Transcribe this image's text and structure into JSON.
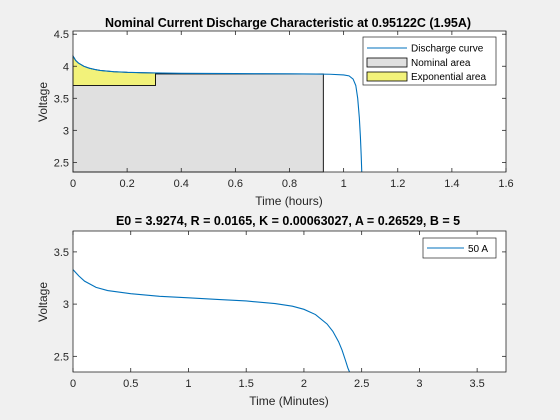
{
  "colors": {
    "figure_bg": "#f0f0f0",
    "axes_bg": "#ffffff",
    "curve": "#0072bd",
    "nominal_fill": "#e0e0e0",
    "exponential_fill": "#f2f27a",
    "grid": "#e8e8e8"
  },
  "chart_data": [
    {
      "type": "line",
      "title": "Nominal Current Discharge Characteristic at 0.95122C (1.95A)",
      "xlabel": "Time (hours)",
      "ylabel": "Voltage",
      "xlim": [
        0,
        1.6
      ],
      "ylim": [
        2.35,
        4.55
      ],
      "xticks": [
        0,
        0.2,
        0.4,
        0.6,
        0.8,
        1,
        1.2,
        1.4,
        1.6
      ],
      "xtick_labels": [
        "0",
        "0.2",
        "0.4",
        "0.6",
        "0.8",
        "1",
        "1.2",
        "1.4",
        "1.6"
      ],
      "yticks": [
        2.5,
        3,
        3.5,
        4,
        4.5
      ],
      "ytick_labels": [
        "2.5",
        "3",
        "3.5",
        "4",
        "4.5"
      ],
      "grid": false,
      "legend_position": "top-right",
      "legend": [
        "Discharge curve",
        "Nominal area",
        "Exponential area"
      ],
      "series": [
        {
          "name": "Discharge curve",
          "x": [
            0,
            0.01,
            0.02,
            0.04,
            0.06,
            0.08,
            0.1,
            0.15,
            0.2,
            0.25,
            0.3,
            0.4,
            0.5,
            0.6,
            0.7,
            0.8,
            0.9,
            0.95,
            1.0,
            1.02,
            1.035,
            1.045,
            1.052,
            1.058,
            1.062,
            1.065,
            1.067
          ],
          "y": [
            4.16,
            4.09,
            4.05,
            4.0,
            3.97,
            3.95,
            3.935,
            3.915,
            3.905,
            3.9,
            3.895,
            3.89,
            3.888,
            3.886,
            3.884,
            3.882,
            3.878,
            3.875,
            3.865,
            3.85,
            3.8,
            3.7,
            3.5,
            3.2,
            2.9,
            2.6,
            2.35
          ]
        }
      ],
      "areas": [
        {
          "name": "Nominal area",
          "x_start": 0,
          "x_end": 0.925,
          "y_top": 3.88
        },
        {
          "name": "Exponential area",
          "x_start": 0,
          "x_end": 0.305,
          "y_bottom": 3.7
        }
      ]
    },
    {
      "type": "line",
      "title": "E0 = 3.9274, R = 0.0165, K = 0.00063027, A = 0.26529, B = 5",
      "xlabel": "Time (Minutes)",
      "ylabel": "Voltage",
      "xlim": [
        0,
        3.75
      ],
      "ylim": [
        2.35,
        3.7
      ],
      "xticks": [
        0,
        0.5,
        1,
        1.5,
        2,
        2.5,
        3,
        3.5
      ],
      "xtick_labels": [
        "0",
        "0.5",
        "1",
        "1.5",
        "2",
        "2.5",
        "3",
        "3.5"
      ],
      "yticks": [
        2.5,
        3,
        3.5
      ],
      "ytick_labels": [
        "2.5",
        "3",
        "3.5"
      ],
      "grid": false,
      "legend_position": "top-right",
      "legend": [
        "50 A"
      ],
      "series": [
        {
          "name": "50 A",
          "x": [
            0,
            0.05,
            0.1,
            0.2,
            0.3,
            0.5,
            0.75,
            1.0,
            1.25,
            1.5,
            1.75,
            1.9,
            2.0,
            2.1,
            2.2,
            2.25,
            2.3,
            2.33,
            2.36,
            2.38,
            2.395
          ],
          "y": [
            3.33,
            3.27,
            3.22,
            3.16,
            3.13,
            3.1,
            3.075,
            3.06,
            3.045,
            3.03,
            3.005,
            2.98,
            2.95,
            2.9,
            2.81,
            2.74,
            2.64,
            2.56,
            2.46,
            2.39,
            2.35
          ]
        }
      ]
    }
  ]
}
